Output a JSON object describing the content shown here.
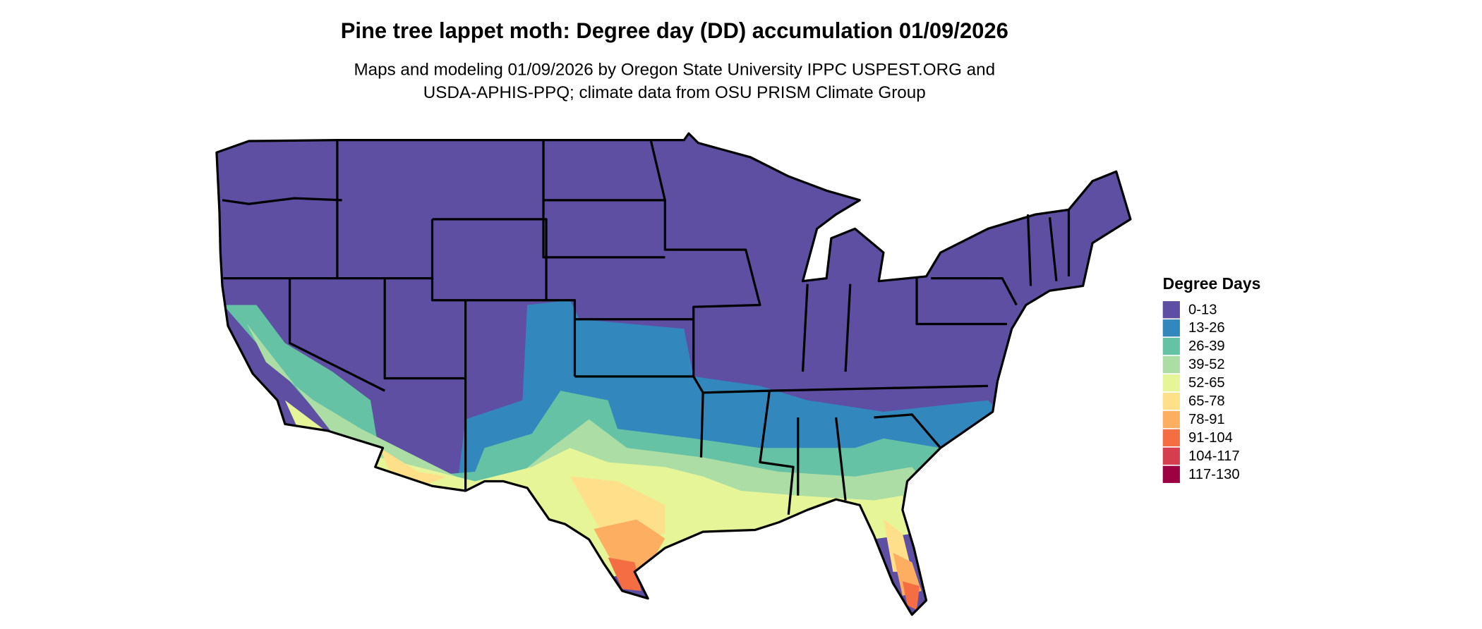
{
  "title": "Pine tree lappet moth: Degree day (DD) accumulation 01/09/2026",
  "subtitle_lines": [
    "Maps and modeling 01/09/2026 by Oregon State University IPPC USPEST.ORG and",
    "USDA-APHIS-PPQ; climate data from OSU PRISM Climate Group"
  ],
  "legend": {
    "title": "Degree Days",
    "items": [
      {
        "label": "0-13",
        "color": "#5e4fa2"
      },
      {
        "label": "13-26",
        "color": "#3288bd"
      },
      {
        "label": "26-39",
        "color": "#66c2a5"
      },
      {
        "label": "39-52",
        "color": "#abdda4"
      },
      {
        "label": "52-65",
        "color": "#e6f598"
      },
      {
        "label": "65-78",
        "color": "#fee08b"
      },
      {
        "label": "78-91",
        "color": "#fdae61"
      },
      {
        "label": "91-104",
        "color": "#f46d43"
      },
      {
        "label": "104-117",
        "color": "#d53e4f"
      },
      {
        "label": "117-130",
        "color": "#9e0142"
      }
    ]
  }
}
